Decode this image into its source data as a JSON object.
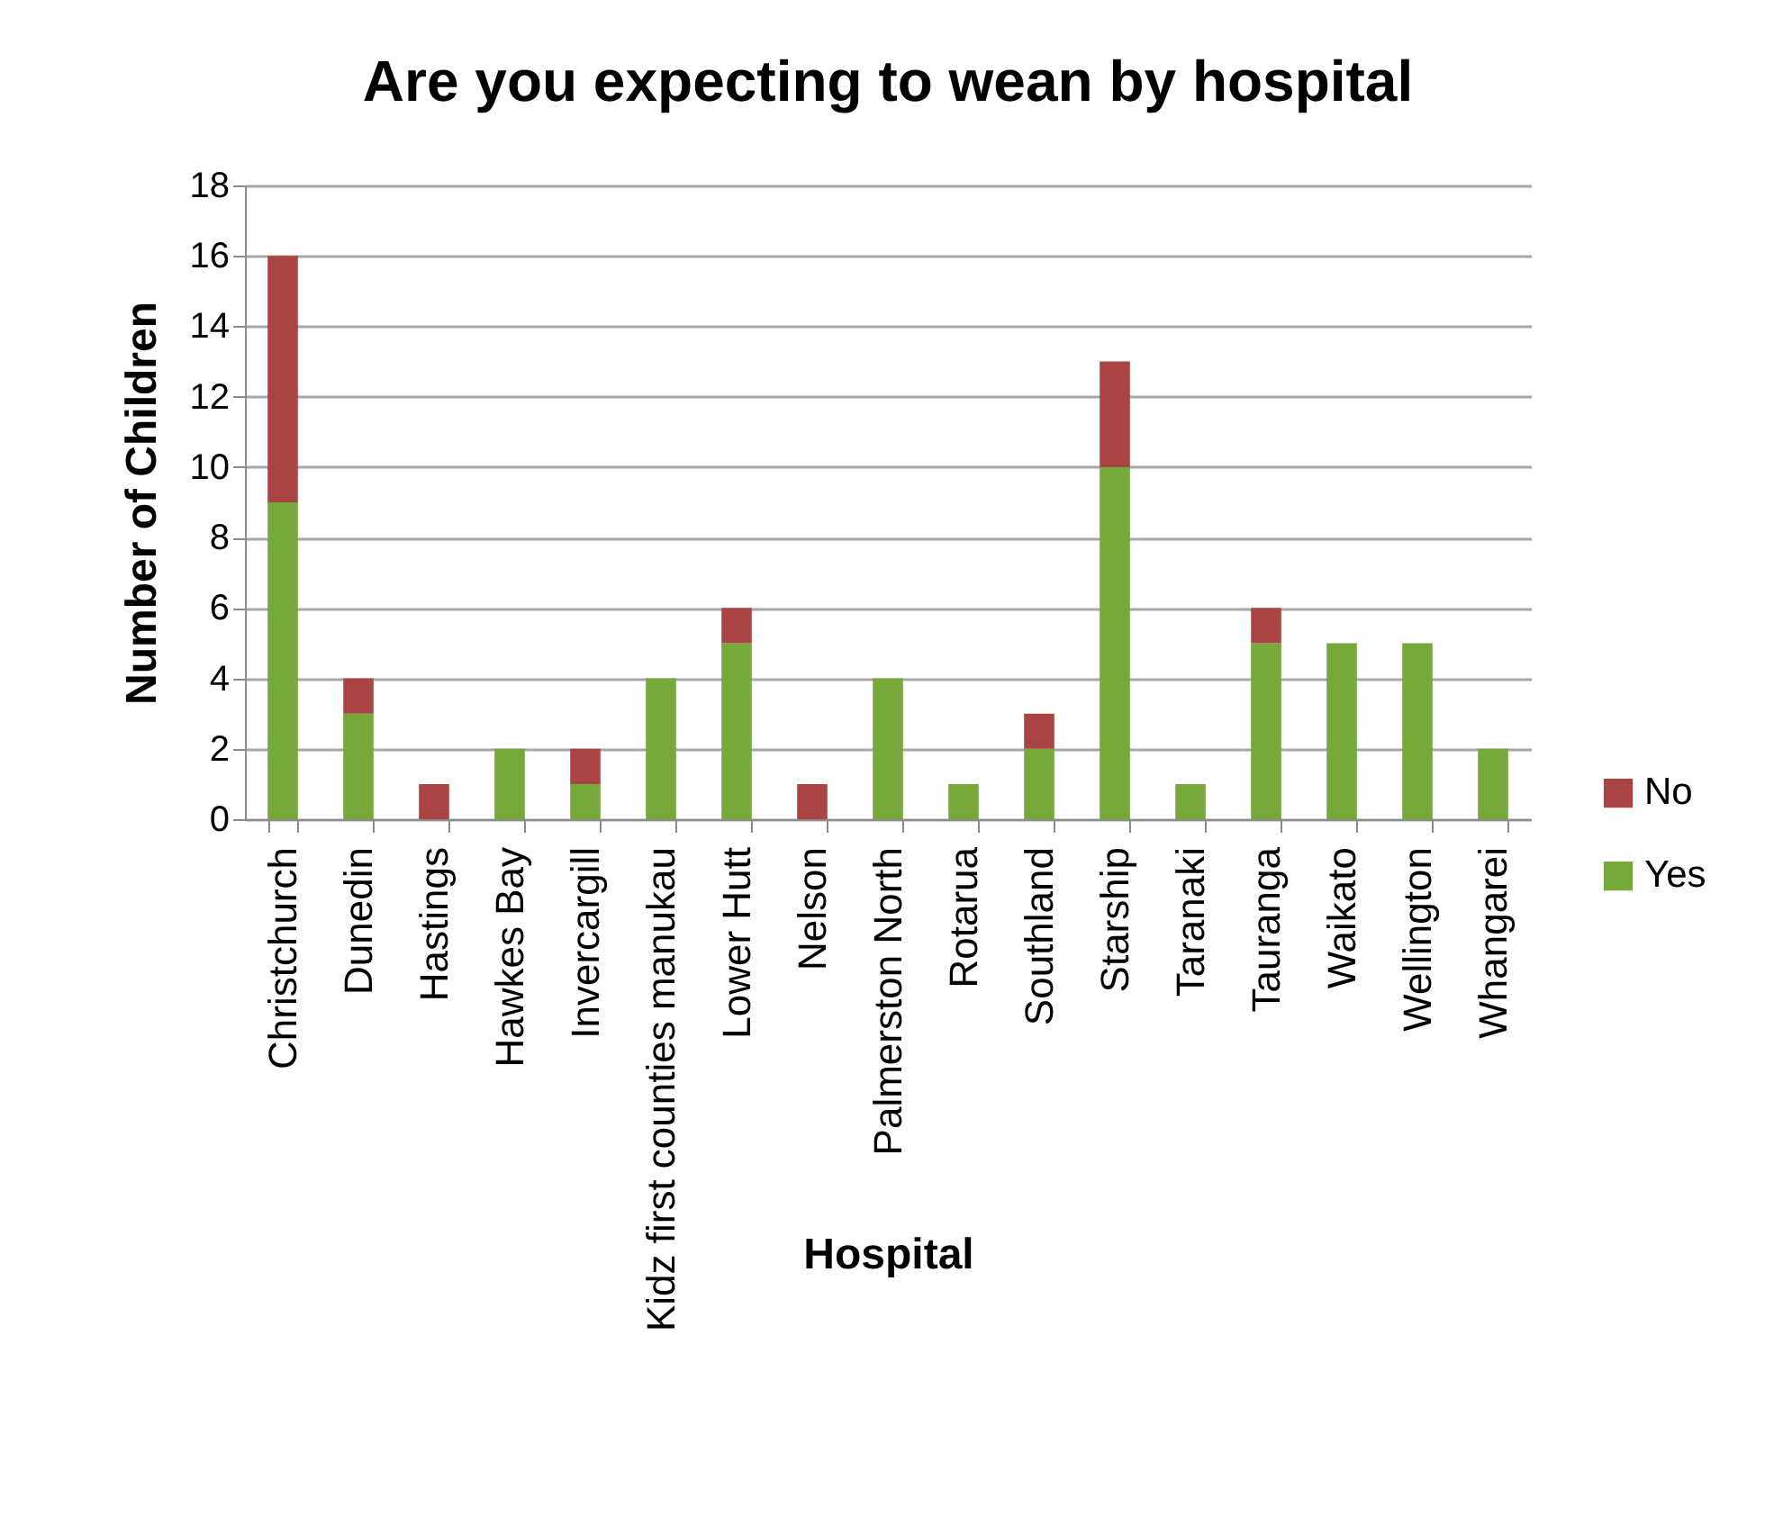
{
  "chart_data": {
    "type": "bar",
    "title": "Are you expecting to wean by hospital",
    "xlabel": "Hospital",
    "ylabel": "Number of Children",
    "categories": [
      "Christchurch",
      "Dunedin",
      "Hastings",
      "Hawkes Bay",
      "Invercargill",
      "Kidz first counties manukau",
      "Lower Hutt",
      "Nelson",
      "Palmerston North",
      "Rotarua",
      "Southland",
      "Starship",
      "Taranaki",
      "Tauranga",
      "Waikato",
      "Wellington",
      "Whangarei"
    ],
    "series": [
      {
        "name": "Yes",
        "color": "#76a83a",
        "values": [
          9,
          3,
          0,
          2,
          1,
          4,
          5,
          0,
          4,
          1,
          2,
          10,
          1,
          5,
          5,
          5,
          2
        ]
      },
      {
        "name": "No",
        "color": "#a94442",
        "values": [
          7,
          1,
          1,
          0,
          1,
          0,
          1,
          1,
          0,
          0,
          1,
          3,
          0,
          1,
          0,
          0,
          0
        ]
      }
    ],
    "stacked": true,
    "ylim": [
      0,
      18
    ],
    "yticks": [
      0,
      2,
      4,
      6,
      8,
      10,
      12,
      14,
      16,
      18
    ],
    "grid": "y",
    "legend": "right"
  }
}
